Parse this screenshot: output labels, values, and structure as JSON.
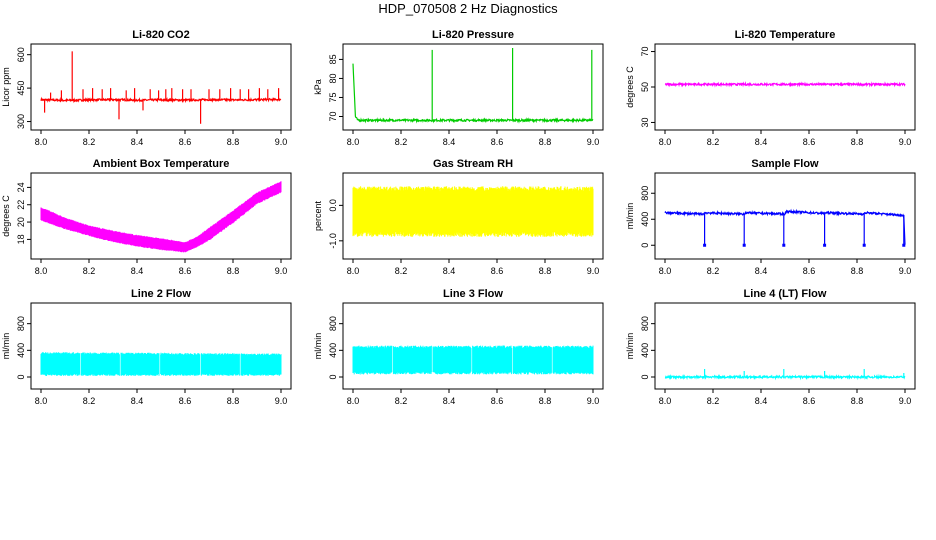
{
  "title": "HDP_070508 2 Hz Diagnostics",
  "chart_data": [
    {
      "type": "line",
      "title": "Li-820 CO2",
      "ylabel": "Licor ppm",
      "xlim": [
        8.0,
        9.0
      ],
      "xticks": [
        "8.0",
        "8.2",
        "8.4",
        "8.6",
        "8.8",
        "9.0"
      ],
      "ylim": [
        280,
        630
      ],
      "yticks": [
        {
          "value": 300,
          "label": "300"
        },
        {
          "value": 450,
          "label": "450"
        },
        {
          "value": 600,
          "label": "600"
        }
      ],
      "color": "#ff0000",
      "series": [
        {
          "x": [
            8.0,
            8.1,
            8.2,
            8.3,
            8.4,
            8.5,
            8.6,
            8.7,
            8.8,
            8.9,
            9.0
          ],
          "values": [
            398,
            395,
            397,
            398,
            396,
            397,
            396,
            398,
            397,
            398,
            399
          ]
        }
      ],
      "spikes": [
        {
          "x": 8.015,
          "y": 340
        },
        {
          "x": 8.04,
          "y": 430
        },
        {
          "x": 8.085,
          "y": 440
        },
        {
          "x": 8.13,
          "y": 615
        },
        {
          "x": 8.175,
          "y": 445
        },
        {
          "x": 8.215,
          "y": 450
        },
        {
          "x": 8.255,
          "y": 445
        },
        {
          "x": 8.29,
          "y": 450
        },
        {
          "x": 8.325,
          "y": 310
        },
        {
          "x": 8.355,
          "y": 440
        },
        {
          "x": 8.39,
          "y": 450
        },
        {
          "x": 8.425,
          "y": 350
        },
        {
          "x": 8.455,
          "y": 445
        },
        {
          "x": 8.49,
          "y": 440
        },
        {
          "x": 8.52,
          "y": 445
        },
        {
          "x": 8.545,
          "y": 450
        },
        {
          "x": 8.59,
          "y": 445
        },
        {
          "x": 8.625,
          "y": 445
        },
        {
          "x": 8.665,
          "y": 290
        },
        {
          "x": 8.7,
          "y": 445
        },
        {
          "x": 8.745,
          "y": 445
        },
        {
          "x": 8.79,
          "y": 450
        },
        {
          "x": 8.83,
          "y": 445
        },
        {
          "x": 8.865,
          "y": 445
        },
        {
          "x": 8.91,
          "y": 450
        },
        {
          "x": 8.945,
          "y": 445
        },
        {
          "x": 8.99,
          "y": 450
        }
      ]
    },
    {
      "type": "line",
      "title": "Li-820 Pressure",
      "ylabel": "kPa",
      "xlim": [
        8.0,
        9.0
      ],
      "xticks": [
        "8.0",
        "8.2",
        "8.4",
        "8.6",
        "8.8",
        "9.0"
      ],
      "ylim": [
        67.5,
        88
      ],
      "yticks": [
        {
          "value": 70,
          "label": "70"
        },
        {
          "value": 75,
          "label": "75"
        },
        {
          "value": 80,
          "label": "80"
        },
        {
          "value": 85,
          "label": "85"
        }
      ],
      "color": "#00cc00",
      "series": [
        {
          "x": [
            8.0,
            8.01,
            8.02,
            8.2,
            8.4,
            8.6,
            8.8,
            9.0
          ],
          "values": [
            84,
            70,
            69,
            69,
            69,
            69,
            69,
            69
          ]
        }
      ],
      "spikes": [
        {
          "x": 8.33,
          "y": 87.5
        },
        {
          "x": 8.665,
          "y": 88
        },
        {
          "x": 8.995,
          "y": 87.5
        }
      ]
    },
    {
      "type": "line",
      "title": "Li-820 Temperature",
      "ylabel": "degrees C",
      "xlim": [
        8.0,
        9.0
      ],
      "xticks": [
        "8.0",
        "8.2",
        "8.4",
        "8.6",
        "8.8",
        "9.0"
      ],
      "ylim": [
        28,
        72
      ],
      "yticks": [
        {
          "value": 30,
          "label": "30"
        },
        {
          "value": 50,
          "label": "50"
        },
        {
          "value": 70,
          "label": "70"
        }
      ],
      "color": "#ff00ff",
      "series": [
        {
          "x": [
            8.0,
            9.0
          ],
          "values": [
            51.5,
            51.5
          ]
        }
      ]
    },
    {
      "type": "area",
      "title": "Ambient Box Temperature",
      "ylabel": "degrees C",
      "xlim": [
        8.0,
        9.0
      ],
      "xticks": [
        "8.0",
        "8.2",
        "8.4",
        "8.6",
        "8.8",
        "9.0"
      ],
      "ylim": [
        16.2,
        25.2
      ],
      "yticks": [
        {
          "value": 18,
          "label": "18"
        },
        {
          "value": 20,
          "label": "20"
        },
        {
          "value": 22,
          "label": "22"
        },
        {
          "value": 24,
          "label": "24"
        }
      ],
      "color": "#ff00ff",
      "series": [
        {
          "x": [
            8.0,
            8.1,
            8.2,
            8.3,
            8.4,
            8.5,
            8.6,
            8.65,
            8.7,
            8.8,
            8.9,
            9.0
          ],
          "low": [
            20.3,
            19.3,
            18.5,
            17.8,
            17.3,
            16.9,
            16.6,
            17.2,
            18.0,
            20.0,
            22.2,
            23.5
          ],
          "high": [
            21.6,
            20.4,
            19.5,
            18.9,
            18.4,
            18.0,
            17.6,
            18.2,
            19.2,
            21.2,
            23.3,
            24.6
          ]
        }
      ]
    },
    {
      "type": "area",
      "title": "Gas Stream RH",
      "ylabel": "percent",
      "xlim": [
        8.0,
        9.0
      ],
      "xticks": [
        "8.0",
        "8.2",
        "8.4",
        "8.6",
        "8.8",
        "9.0"
      ],
      "ylim": [
        -1.4,
        0.8
      ],
      "yticks": [
        {
          "value": -1.0,
          "label": "-1.0"
        },
        {
          "value": 0.0,
          "label": "0.0"
        }
      ],
      "color": "#ffff00",
      "series": [
        {
          "x": [
            8.0,
            9.0
          ],
          "low": [
            -0.75,
            -0.75
          ],
          "high": [
            0.4,
            0.4
          ]
        }
      ]
    },
    {
      "type": "line",
      "title": "Sample Flow",
      "ylabel": "ml/min",
      "xlim": [
        8.0,
        9.0
      ],
      "xticks": [
        "8.0",
        "8.2",
        "8.4",
        "8.6",
        "8.8",
        "9.0"
      ],
      "ylim": [
        -150,
        1050
      ],
      "yticks": [
        {
          "value": 0,
          "label": "0"
        },
        {
          "value": 400,
          "label": "400"
        },
        {
          "value": 800,
          "label": "800"
        }
      ],
      "color": "#0000ff",
      "series": [
        {
          "x": [
            8.0,
            8.16,
            8.165,
            8.33,
            8.335,
            8.5,
            8.505,
            8.665,
            8.67,
            8.83,
            8.835,
            8.995,
            9.0
          ],
          "values": [
            500,
            480,
            500,
            480,
            500,
            480,
            520,
            490,
            500,
            480,
            500,
            460,
            0
          ]
        }
      ],
      "dips": [
        8.165,
        8.33,
        8.495,
        8.665,
        8.83,
        8.995
      ]
    },
    {
      "type": "area",
      "title": "Line 2 Flow",
      "ylabel": "ml/min",
      "xlim": [
        8.0,
        9.0
      ],
      "xticks": [
        "8.0",
        "8.2",
        "8.4",
        "8.6",
        "8.8",
        "9.0"
      ],
      "ylim": [
        -120,
        1050
      ],
      "yticks": [
        {
          "value": 0,
          "label": "0"
        },
        {
          "value": 400,
          "label": "400"
        },
        {
          "value": 800,
          "label": "800"
        }
      ],
      "color": "#00ffff",
      "series": [
        {
          "x": [
            8.0,
            9.0
          ],
          "low": [
            50,
            50
          ],
          "high": [
            340,
            320
          ]
        }
      ],
      "gaps": [
        8.165,
        8.33,
        8.495,
        8.665,
        8.83
      ]
    },
    {
      "type": "area",
      "title": "Line 3 Flow",
      "ylabel": "ml/min",
      "xlim": [
        8.0,
        9.0
      ],
      "xticks": [
        "8.0",
        "8.2",
        "8.4",
        "8.6",
        "8.8",
        "9.0"
      ],
      "ylim": [
        -120,
        1050
      ],
      "yticks": [
        {
          "value": 0,
          "label": "0"
        },
        {
          "value": 400,
          "label": "400"
        },
        {
          "value": 800,
          "label": "800"
        }
      ],
      "color": "#00ffff",
      "series": [
        {
          "x": [
            8.0,
            9.0
          ],
          "low": [
            80,
            80
          ],
          "high": [
            430,
            430
          ]
        }
      ],
      "gaps": [
        8.165,
        8.33,
        8.495,
        8.665,
        8.83
      ]
    },
    {
      "type": "line",
      "title": "Line 4 (LT) Flow",
      "ylabel": "ml/min",
      "xlim": [
        8.0,
        9.0
      ],
      "xticks": [
        "8.0",
        "8.2",
        "8.4",
        "8.6",
        "8.8",
        "9.0"
      ],
      "ylim": [
        -120,
        1050
      ],
      "yticks": [
        {
          "value": 0,
          "label": "0"
        },
        {
          "value": 400,
          "label": "400"
        },
        {
          "value": 800,
          "label": "800"
        }
      ],
      "color": "#00ffff",
      "series": [
        {
          "x": [
            8.0,
            9.0
          ],
          "values": [
            0,
            0
          ]
        }
      ],
      "spikes": [
        {
          "x": 8.165,
          "y": 120
        },
        {
          "x": 8.33,
          "y": 90
        },
        {
          "x": 8.495,
          "y": 120
        },
        {
          "x": 8.665,
          "y": 90
        },
        {
          "x": 8.83,
          "y": 120
        },
        {
          "x": 8.995,
          "y": 60
        }
      ]
    }
  ]
}
